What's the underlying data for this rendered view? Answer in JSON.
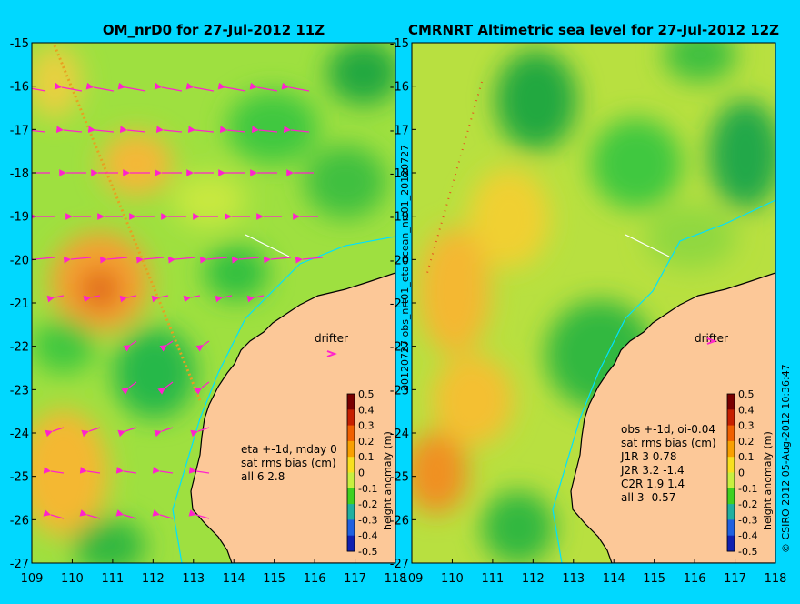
{
  "page": {
    "background": "#00d8ff"
  },
  "left_panel": {
    "title": "OM_nrD0 for 27-Jul-2012 11Z",
    "info_lines": [
      "eta +-1d, mday 0",
      "sat rms bias (cm)",
      "all 6 2.8"
    ],
    "drifter_label": "drifter",
    "colorbar_label": "height anomaly (m)"
  },
  "right_panel": {
    "title": "CMRNRT Altimetric sea level  for 27-Jul-2012 12Z",
    "info_lines": [
      "obs +-1d, oi-0.04",
      "sat rms bias (cm)",
      "J1R   3 0.78",
      "J2R   3.2 -1.4",
      "C2R   1.9 1.4",
      "all 3 -0.57"
    ],
    "drifter_label": "drifter",
    "colorbar_label": "height anomaly (m)"
  },
  "middle_vertical_text": "20120727 obs_nrt01_eta          ocean_nrt01_20120727",
  "right_vertical_text": "© CSIRO 2012  05-Aug-2012 10:36:47",
  "axes": {
    "lon_min": 109,
    "lon_max": 118,
    "lat_min": -27,
    "lat_max": -15,
    "lon_ticks": [
      "109",
      "110",
      "111",
      "112",
      "113",
      "114",
      "115",
      "116",
      "117",
      "118"
    ],
    "lat_ticks": [
      "-15",
      "-16",
      "-17",
      "-18",
      "-19",
      "-20",
      "-21",
      "-22",
      "-23",
      "-24",
      "-25",
      "-26",
      "-27"
    ]
  },
  "colorbar": {
    "ticks": [
      "0.5",
      "0.4",
      "0.3",
      "0.2",
      "0.1",
      "0",
      "-0.1",
      "-0.2",
      "-0.3",
      "-0.4",
      "-0.5"
    ],
    "colors": [
      "#7a0000",
      "#c62000",
      "#f06000",
      "#f8a000",
      "#f8e020",
      "#c8f040",
      "#40d020",
      "#20b0a0",
      "#2060e0",
      "#1020b0",
      "#000060"
    ]
  },
  "colors": {
    "ocean_base": "#9ee040",
    "land": "#fcc898",
    "arrows": "#ff22cc",
    "coast_line": "#00e0ff",
    "high": "#f8b030",
    "low": "#20b040"
  },
  "chart_data": {
    "type": "heatmap",
    "x_range": [
      109,
      118
    ],
    "y_range": [
      -27,
      -15
    ],
    "drifter_position": [
      116.6,
      -22.2
    ]
  }
}
